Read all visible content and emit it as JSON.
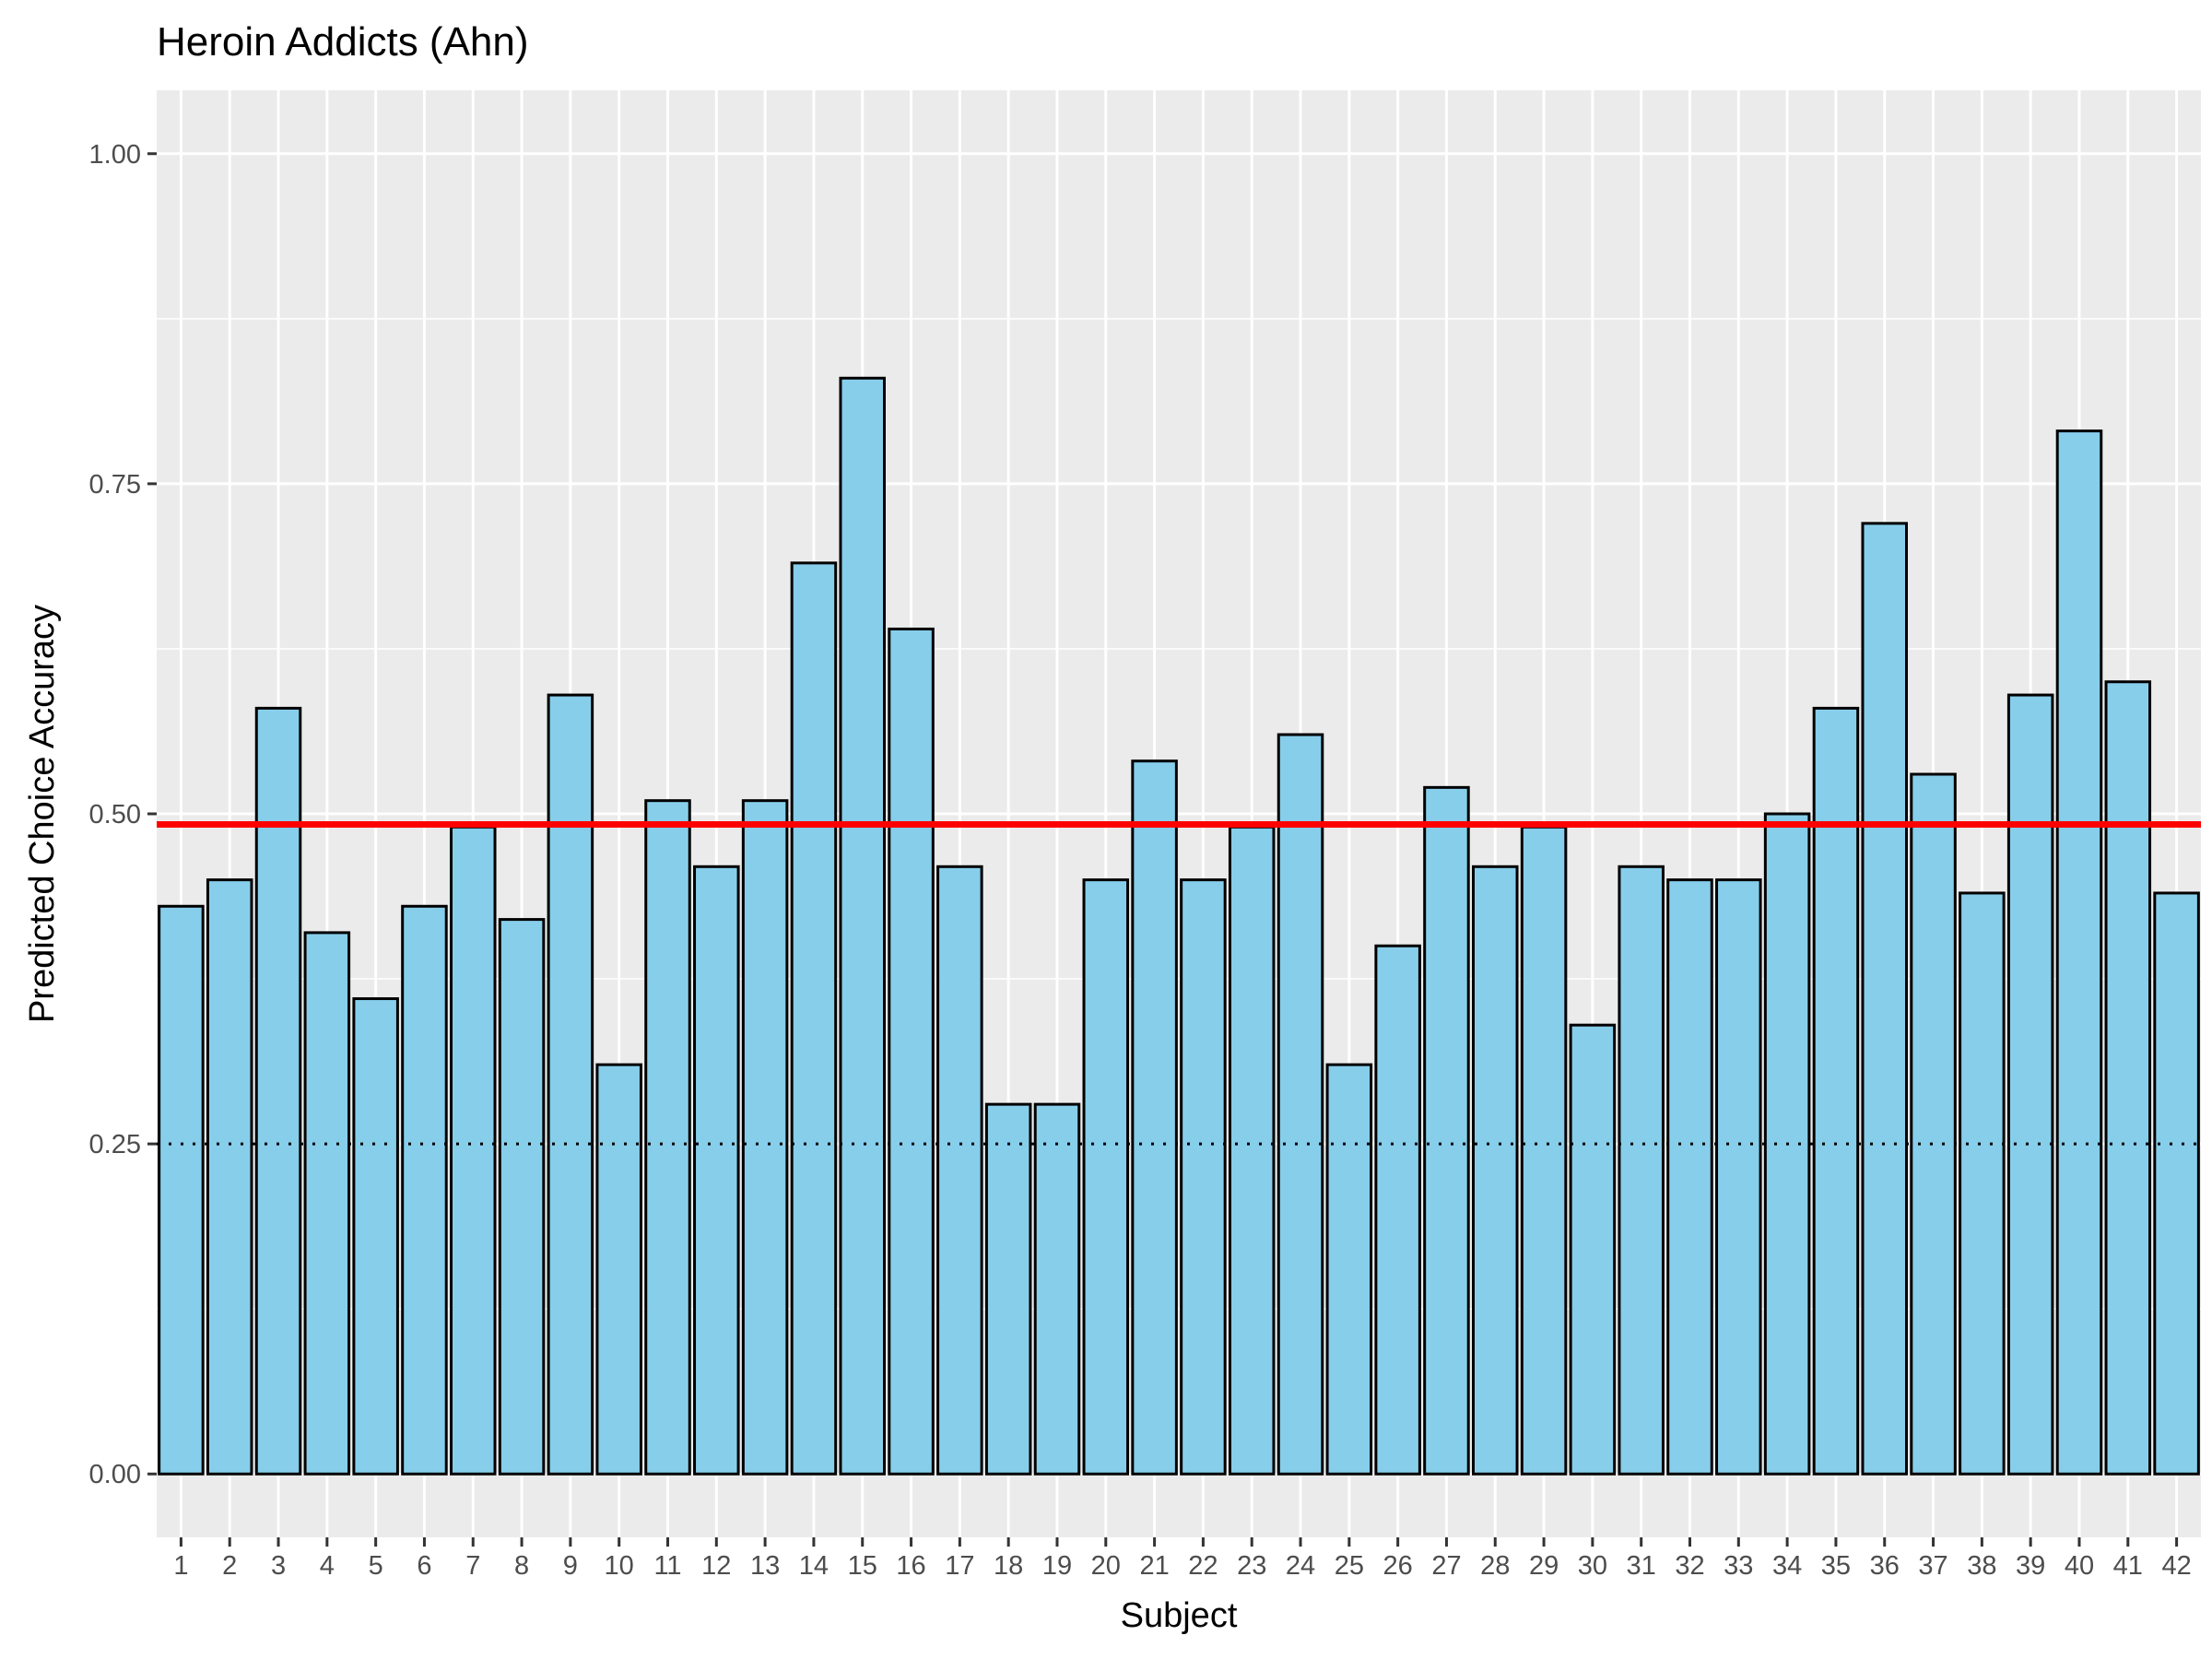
{
  "chart_data": {
    "type": "bar",
    "title": "Heroin Addicts (Ahn)",
    "xlabel": "Subject",
    "ylabel": "Predicted Choice Accuracy",
    "categories": [
      "1",
      "2",
      "3",
      "4",
      "5",
      "6",
      "7",
      "8",
      "9",
      "10",
      "11",
      "12",
      "13",
      "14",
      "15",
      "16",
      "17",
      "18",
      "19",
      "20",
      "21",
      "22",
      "23",
      "24",
      "25",
      "26",
      "27",
      "28",
      "29",
      "30",
      "31",
      "32",
      "33",
      "34",
      "35",
      "36",
      "37",
      "38",
      "39",
      "40",
      "41",
      "42"
    ],
    "values": [
      0.43,
      0.45,
      0.58,
      0.41,
      0.36,
      0.43,
      0.49,
      0.42,
      0.59,
      0.31,
      0.51,
      0.46,
      0.51,
      0.69,
      0.83,
      0.64,
      0.46,
      0.28,
      0.28,
      0.45,
      0.54,
      0.45,
      0.49,
      0.56,
      0.31,
      0.4,
      0.52,
      0.46,
      0.49,
      0.34,
      0.46,
      0.45,
      0.45,
      0.5,
      0.58,
      0.72,
      0.53,
      0.44,
      0.59,
      0.79,
      0.6,
      0.44
    ],
    "ylim": [
      -0.048,
      1.048
    ],
    "yticks": [
      0.0,
      0.25,
      0.5,
      0.75,
      1.0
    ],
    "ytick_labels": [
      "0.00",
      "0.25",
      "0.50",
      "0.75",
      "1.00"
    ],
    "reference_lines": [
      {
        "value": 0.492,
        "style": "solid",
        "color": "#ff0000"
      },
      {
        "value": 0.25,
        "style": "dotted",
        "color": "#000000"
      }
    ],
    "bar_fill": "#87ceeb",
    "bar_outline": "#000000",
    "panel_background": "#ebebeb",
    "grid": true,
    "legend": "none"
  }
}
